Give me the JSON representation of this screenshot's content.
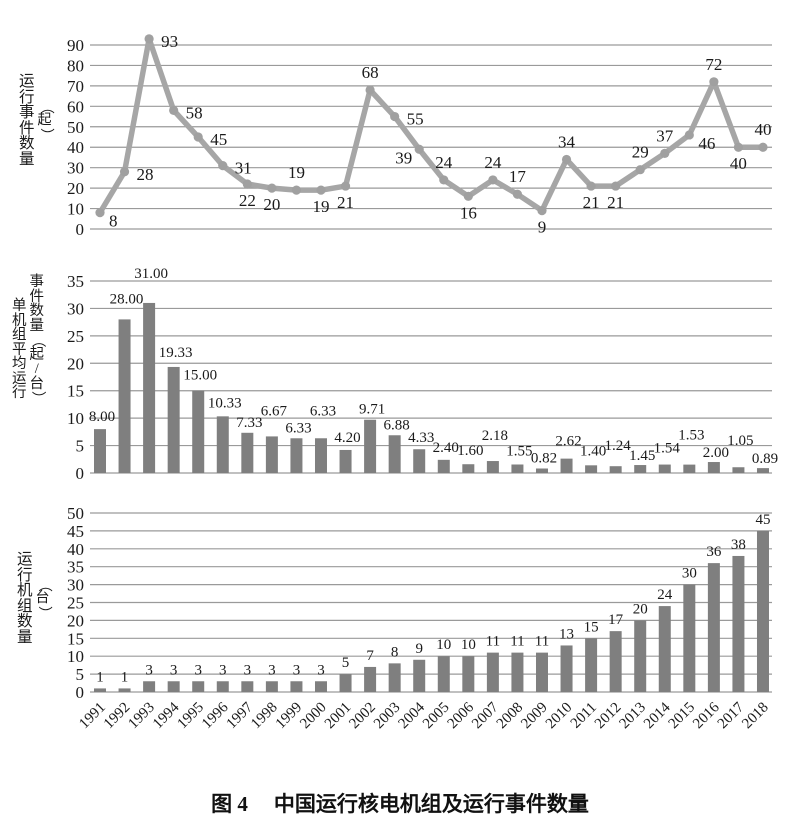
{
  "caption": {
    "figure_label": "图 4",
    "title": "中国运行核电机组及运行事件数量"
  },
  "years": [
    "1991",
    "1992",
    "1993",
    "1994",
    "1995",
    "1996",
    "1997",
    "1998",
    "1999",
    "2000",
    "2001",
    "2002",
    "2003",
    "2004",
    "2005",
    "2006",
    "2007",
    "2008",
    "2009",
    "2010",
    "2011",
    "2012",
    "2013",
    "2014",
    "2015",
    "2016",
    "2017",
    "2018"
  ],
  "colors": {
    "bar": "#7f7f7f",
    "line": "#a6a6a6",
    "marker": "#a0a0a0",
    "grid": "#9a9a9a",
    "text": "#1a1a1a"
  },
  "chart_data": [
    {
      "type": "line",
      "name": "operating-events",
      "ylabel": "运行事件数量（起）",
      "ylabel_columns": [
        "运行事件数量",
        "（起）"
      ],
      "ylim": [
        0,
        90
      ],
      "ytick_step": 10,
      "grid": true,
      "categories": [
        "1991",
        "1992",
        "1993",
        "1994",
        "1995",
        "1996",
        "1997",
        "1998",
        "1999",
        "2000",
        "2001",
        "2002",
        "2003",
        "2004",
        "2005",
        "2006",
        "2007",
        "2008",
        "2009",
        "2010",
        "2011",
        "2012",
        "2013",
        "2014",
        "2015",
        "2016",
        "2017",
        "2018"
      ],
      "values": [
        8,
        28,
        93,
        58,
        45,
        31,
        22,
        20,
        19,
        19,
        21,
        68,
        55,
        39,
        24,
        16,
        24,
        17,
        9,
        34,
        21,
        21,
        29,
        37,
        46,
        72,
        40,
        40
      ],
      "labels": [
        "8",
        "28",
        "93",
        "58",
        "45",
        "31",
        "22",
        "20",
        "19",
        "19",
        "21",
        "68",
        "55",
        "39",
        "24",
        "16",
        "24",
        "17",
        "9",
        "34",
        "21",
        "21",
        "29",
        "37",
        "46",
        "72",
        "40",
        "40"
      ]
    },
    {
      "type": "bar",
      "name": "avg-events-per-unit",
      "ylabel": "单机组平均运行事件数量（起/台）",
      "ylabel_columns": [
        "单机组平均运行",
        "事件数量（起/台）"
      ],
      "ylim": [
        0,
        35
      ],
      "ytick_step": 5,
      "grid": true,
      "categories": [
        "1991",
        "1992",
        "1993",
        "1994",
        "1995",
        "1996",
        "1997",
        "1998",
        "1999",
        "2000",
        "2001",
        "2002",
        "2003",
        "2004",
        "2005",
        "2006",
        "2007",
        "2008",
        "2009",
        "2010",
        "2011",
        "2012",
        "2013",
        "2014",
        "2015",
        "2016",
        "2017",
        "2018"
      ],
      "values": [
        8.0,
        28.0,
        31.0,
        19.33,
        15.0,
        10.33,
        7.33,
        6.67,
        6.33,
        6.33,
        4.2,
        9.71,
        6.88,
        4.33,
        2.4,
        1.6,
        2.18,
        1.55,
        0.82,
        2.62,
        1.4,
        1.24,
        1.45,
        1.54,
        1.53,
        2.0,
        1.05,
        0.89
      ],
      "labels": [
        "8.00",
        "28.00",
        "31.00",
        "19.33",
        "15.00",
        "10.33",
        "7.33",
        "6.67",
        "6.33",
        "6.33",
        "4.20",
        "9.71",
        "6.88",
        "4.33",
        "2.40",
        "1.60",
        "2.18",
        "1.55",
        "0.82",
        "2.62",
        "1.40",
        "1.24",
        "1.45",
        "1.54",
        "1.53",
        "2.00",
        "1.05",
        "0.89"
      ]
    },
    {
      "type": "bar",
      "name": "operating-units",
      "ylabel": "运行机组数量（台）",
      "ylabel_columns": [
        "运行机组数量",
        "（台）"
      ],
      "ylim": [
        0,
        50
      ],
      "ytick_step": 5,
      "grid": true,
      "show_x_labels": true,
      "categories": [
        "1991",
        "1992",
        "1993",
        "1994",
        "1995",
        "1996",
        "1997",
        "1998",
        "1999",
        "2000",
        "2001",
        "2002",
        "2003",
        "2004",
        "2005",
        "2006",
        "2007",
        "2008",
        "2009",
        "2010",
        "2011",
        "2012",
        "2013",
        "2014",
        "2015",
        "2016",
        "2017",
        "2018"
      ],
      "values": [
        1,
        1,
        3,
        3,
        3,
        3,
        3,
        3,
        3,
        3,
        5,
        7,
        8,
        9,
        10,
        10,
        11,
        11,
        11,
        13,
        15,
        17,
        20,
        24,
        30,
        36,
        38,
        45
      ],
      "labels": [
        "1",
        "1",
        "3",
        "3",
        "3",
        "3",
        "3",
        "3",
        "3",
        "3",
        "5",
        "7",
        "8",
        "9",
        "10",
        "10",
        "11",
        "11",
        "11",
        "13",
        "15",
        "17",
        "20",
        "24",
        "30",
        "36",
        "38",
        "45"
      ]
    }
  ]
}
